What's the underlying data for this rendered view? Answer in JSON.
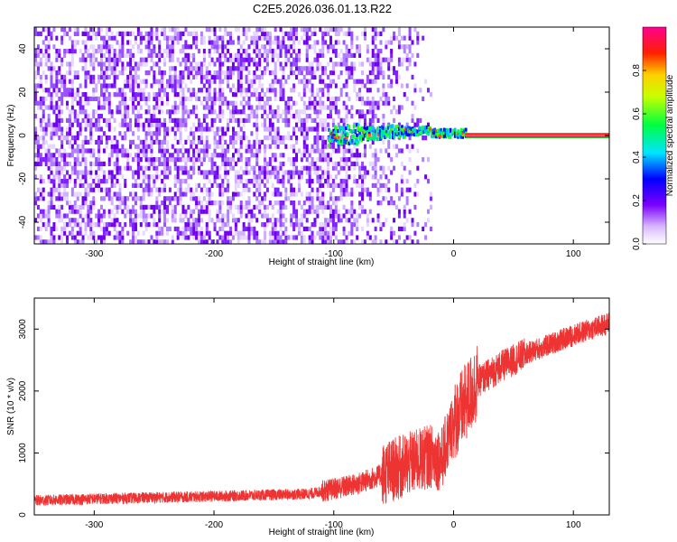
{
  "title": "C2E5.2026.036.01.13.R22",
  "chart_data": [
    {
      "type": "heatmap",
      "xlabel": "Height of straight line (km)",
      "ylabel": "Frequency (Hz)",
      "xlim": [
        -350,
        130
      ],
      "ylim": [
        -50,
        50
      ],
      "x_ticks": [
        "-300",
        "-200",
        "-100",
        "0",
        "100"
      ],
      "y_ticks": [
        "-40",
        "-20",
        "0",
        "20",
        "40"
      ],
      "colorbar": {
        "label": "Normalized spectral amplitude",
        "range": [
          0,
          1
        ],
        "ticks": [
          "0.0",
          "0.2",
          "0.4",
          "0.6",
          "0.8"
        ],
        "colormap": "rainbow (white-violet-blue-cyan-green-yellow-red-magenta)"
      },
      "features": {
        "noise_region_km": [
          -350,
          -100
        ],
        "fading_noise_region_km": [
          -100,
          -30
        ],
        "signal_line_start_km": 10,
        "signal_line_frequency_hz": 0
      },
      "grid": false,
      "legend": "none"
    },
    {
      "type": "line",
      "xlabel": "Height of straight line (km)",
      "ylabel": "SNR (10 * v/v)",
      "xlim": [
        -350,
        130
      ],
      "ylim": [
        0,
        3500
      ],
      "x_ticks": [
        "-300",
        "-200",
        "-100",
        "0",
        "100"
      ],
      "y_ticks": [
        "0",
        "1000",
        "2000",
        "3000"
      ],
      "series": [
        {
          "color": "#ee3333",
          "trend_x": [
            -350,
            -300,
            -200,
            -120,
            -80,
            -60,
            -40,
            -20,
            -10,
            -5,
            0,
            5,
            10,
            20,
            40,
            60,
            100,
            130
          ],
          "trend_y": [
            230,
            260,
            300,
            340,
            500,
            650,
            800,
            950,
            900,
            1200,
            1500,
            1650,
            1800,
            2150,
            2400,
            2600,
            2900,
            3100
          ]
        }
      ],
      "grid": false,
      "legend": "none"
    }
  ]
}
